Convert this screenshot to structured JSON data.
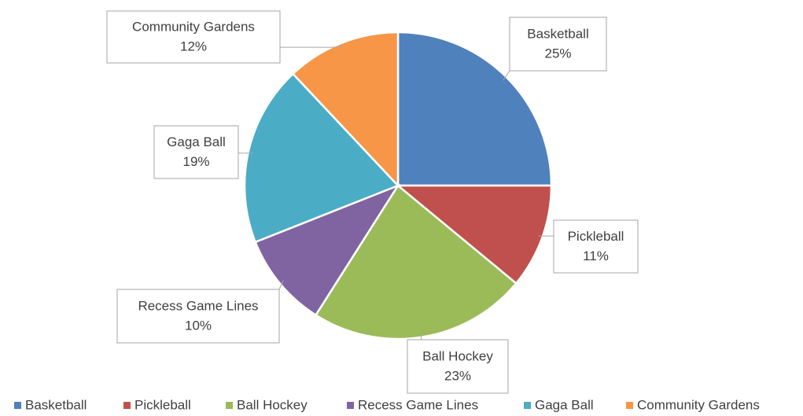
{
  "chart_data": {
    "type": "pie",
    "categories": [
      "Basketball",
      "Pickleball",
      "Ball Hockey",
      "Recess Game Lines",
      "Gaga Ball",
      "Community Gardens"
    ],
    "values": [
      25,
      11,
      23,
      10,
      19,
      12
    ],
    "value_labels": [
      "25%",
      "11%",
      "23%",
      "10%",
      "19%",
      "12%"
    ],
    "colors": [
      "#4f81bd",
      "#c0504d",
      "#9bbb59",
      "#8064a2",
      "#4bacc6",
      "#f79646"
    ],
    "legend": "bottom"
  }
}
